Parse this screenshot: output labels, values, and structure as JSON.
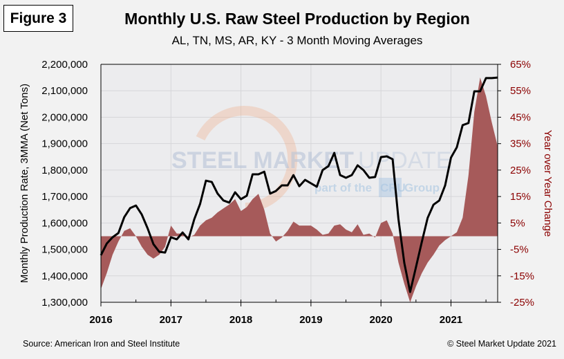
{
  "figure_label": "Figure 3",
  "footer": {
    "source": "Source: American Iron and Steel Institute",
    "copyright": "© Steel Market Update 2021"
  },
  "watermark": {
    "brand_bold": "STEEL MARKET",
    "brand_thin": "UPDATE",
    "tagline_pre": "part of the",
    "tagline_logo": "CRU",
    "tagline_post": "Group"
  },
  "colors": {
    "line": "#000000",
    "area": "#a65a5a",
    "right_axis": "#8b0000",
    "plot_bg": "#ececee",
    "grid": "#d6d6d9"
  },
  "chart_data": {
    "type": "line",
    "title": "Monthly U.S. Raw Steel Production by Region",
    "subtitle": "AL, TN, MS, AR, KY - 3 Month Moving Averages",
    "xlabel": "",
    "ylabel": "Monthly Production Rate, 3MMA (Net Tons)",
    "ylabel_right": "Year over Year Change",
    "ylim": [
      1300000,
      2200000
    ],
    "ylim_right": [
      -25,
      65
    ],
    "yticks": [
      "1,300,000",
      "1,400,000",
      "1,500,000",
      "1,600,000",
      "1,700,000",
      "1,800,000",
      "1,900,000",
      "2,000,000",
      "2,100,000",
      "2,200,000"
    ],
    "yticks_right": [
      "-25%",
      "-15%",
      "-5%",
      "5%",
      "15%",
      "25%",
      "35%",
      "45%",
      "55%",
      "65%"
    ],
    "xticks": [
      "2016",
      "2017",
      "2018",
      "2019",
      "2020",
      "2021"
    ],
    "x_start": "2016-01",
    "x_end": "2021-09",
    "grid": true,
    "series": [
      {
        "name": "Production (3MMA, net tons)",
        "type": "line",
        "axis": "left",
        "values": [
          1478000,
          1522000,
          1546000,
          1562000,
          1622000,
          1656000,
          1666000,
          1632000,
          1580000,
          1520000,
          1491000,
          1488000,
          1546000,
          1538000,
          1564000,
          1538000,
          1614000,
          1672000,
          1760000,
          1755000,
          1711000,
          1685000,
          1677000,
          1716000,
          1690000,
          1703000,
          1784000,
          1784000,
          1794000,
          1711000,
          1721000,
          1742000,
          1742000,
          1781000,
          1739000,
          1763000,
          1750000,
          1737000,
          1800000,
          1815000,
          1865000,
          1781000,
          1771000,
          1781000,
          1818000,
          1800000,
          1771000,
          1774000,
          1849000,
          1852000,
          1841000,
          1614000,
          1449000,
          1339000,
          1433000,
          1528000,
          1619000,
          1669000,
          1685000,
          1742000,
          1847000,
          1886000,
          1970000,
          1978000,
          2098000,
          2098000,
          2148000,
          2148000,
          2150000
        ]
      },
      {
        "name": "Year over Year Change (%)",
        "type": "area",
        "axis": "right",
        "values": [
          -20,
          -14,
          -7,
          -2,
          2,
          3,
          0,
          -4,
          -7,
          -8.5,
          -7,
          -4,
          4,
          1,
          1,
          -0.5,
          0.5,
          4,
          6,
          7,
          9,
          10.5,
          12,
          14,
          9.5,
          11,
          14,
          16,
          10,
          1,
          -2,
          -0.5,
          2,
          5.5,
          4,
          4,
          4,
          2.5,
          0.5,
          1,
          4,
          4.5,
          2.5,
          1.5,
          4.5,
          0.5,
          1,
          -0.5,
          5,
          6,
          1,
          -10,
          -18,
          -25,
          -19,
          -14,
          -10,
          -7,
          -3.5,
          -1.5,
          0,
          1.5,
          7,
          23,
          47,
          60,
          53,
          43,
          34
        ]
      }
    ]
  }
}
